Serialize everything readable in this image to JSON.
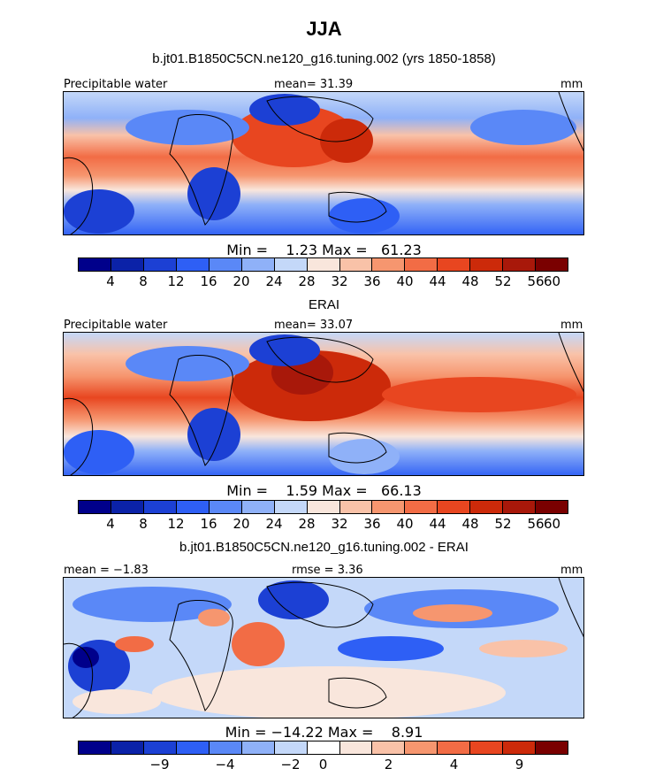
{
  "title": "JJA",
  "panel1": {
    "subtitle": "b.jt01.B1850C5CN.ne120_g16.tuning.002 (yrs 1850-1858)",
    "left_label": "Precipitable water",
    "center_label": "mean=  31.39",
    "right_label": "mm",
    "stats": "Min =    1.23 Max =   61.23"
  },
  "panel2": {
    "subtitle": "ERAI",
    "left_label": "Precipitable water",
    "center_label": "mean=  33.07",
    "right_label": "mm",
    "stats": "Min =    1.59 Max =   66.13"
  },
  "panel3": {
    "subtitle": "b.jt01.B1850C5CN.ne120_g16.tuning.002 - ERAI",
    "left_label": "mean =  −1.83",
    "center_label": "rmse =    3.36",
    "right_label": "mm",
    "stats": "Min = −14.22 Max =    8.91"
  },
  "colorbar_abs": {
    "colors": [
      "#00008b",
      "#0b22a8",
      "#1c40d4",
      "#2e5ff5",
      "#5a88f7",
      "#8fb1f8",
      "#c4d8f9",
      "#f9e6dc",
      "#f9c2a8",
      "#f6966f",
      "#f26c45",
      "#e84620",
      "#cc2a0a",
      "#a8180a",
      "#7a0000"
    ],
    "labels": [
      "4",
      "8",
      "12",
      "16",
      "20",
      "24",
      "28",
      "32",
      "36",
      "40",
      "44",
      "48",
      "52",
      "56",
      "60"
    ]
  },
  "colorbar_diff": {
    "colors": [
      "#00008b",
      "#0b22a8",
      "#1c40d4",
      "#2e5ff5",
      "#5a88f7",
      "#8fb1f8",
      "#c4d8f9",
      "#ffffff",
      "#f9e6dc",
      "#f9c2a8",
      "#f6966f",
      "#f26c45",
      "#e84620",
      "#cc2a0a",
      "#7a0000"
    ],
    "labels": [
      "−9",
      "−4",
      "−2",
      "0",
      "2",
      "4",
      "9"
    ]
  }
}
